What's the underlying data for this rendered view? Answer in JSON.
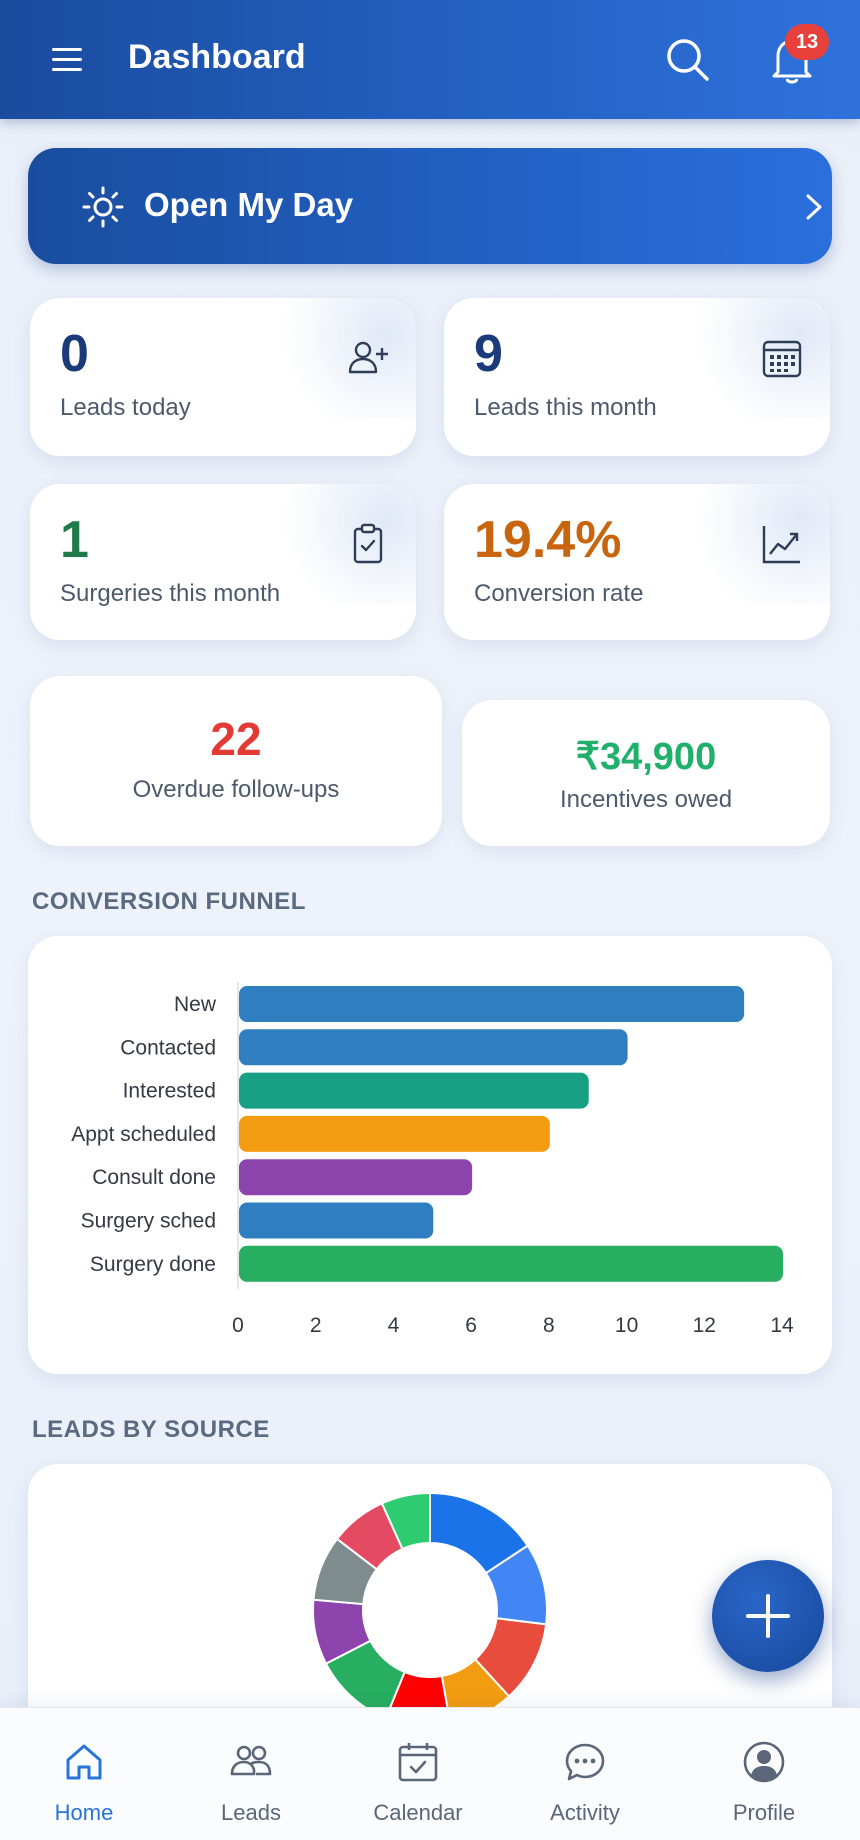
{
  "header": {
    "title": "Dashboard",
    "notification_count": "13"
  },
  "open_day": {
    "label": "Open My Day"
  },
  "stats": [
    {
      "value": "0",
      "label": "Leads today",
      "icon": "add-user-icon",
      "color": "#1a3a7a"
    },
    {
      "value": "9",
      "label": "Leads this month",
      "icon": "calendar-icon",
      "color": "#1a3a7a"
    },
    {
      "value": "1",
      "label": "Surgeries this month",
      "icon": "clipboard-check-icon",
      "color": "#1e7a4a"
    },
    {
      "value": "19.4%",
      "label": "Conversion rate",
      "icon": "trend-chart-icon",
      "color": "#c8650f"
    }
  ],
  "overdue": {
    "value": "22",
    "label": "Overdue follow-ups",
    "color": "#e23b35"
  },
  "incentives": {
    "value": "₹34,900",
    "label": "Incentives owed",
    "color": "#21b06b"
  },
  "sections": {
    "funnel_title": "CONVERSION FUNNEL",
    "source_title": "LEADS BY SOURCE"
  },
  "chart_data": [
    {
      "type": "bar",
      "orientation": "horizontal",
      "categories": [
        "New",
        "Contacted",
        "Interested",
        "Appt scheduled",
        "Consult done",
        "Surgery sched",
        "Surgery done"
      ],
      "values": [
        13,
        10,
        9,
        8,
        6,
        5,
        14
      ],
      "colors": [
        "#2f7fc0",
        "#2f7fc0",
        "#18a085",
        "#f39c12",
        "#8e44ad",
        "#2f7fc0",
        "#27ae60"
      ],
      "xlim": [
        0,
        14
      ],
      "xticks": [
        0,
        2,
        4,
        6,
        8,
        10,
        12,
        14
      ],
      "grid": false
    },
    {
      "type": "pie",
      "donut": true,
      "colors": [
        "#1a73e8",
        "#4285f4",
        "#e74c3c",
        "#f39c12",
        "#ff0000",
        "#27ae60",
        "#8e44ad",
        "#7f8c8d",
        "#e44b62",
        "#2ecc71"
      ],
      "values": [
        14,
        10,
        10,
        8,
        8,
        10,
        8,
        8,
        7,
        6
      ]
    }
  ],
  "nav": [
    {
      "label": "Home",
      "icon": "home-icon",
      "active": true
    },
    {
      "label": "Leads",
      "icon": "users-icon",
      "active": false
    },
    {
      "label": "Calendar",
      "icon": "calendar-check-icon",
      "active": false
    },
    {
      "label": "Activity",
      "icon": "chat-bubble-icon",
      "active": false
    },
    {
      "label": "Profile",
      "icon": "profile-icon",
      "active": false
    }
  ],
  "colors": {
    "brand": "#1f5bbf",
    "active_nav": "#2a73d9"
  }
}
